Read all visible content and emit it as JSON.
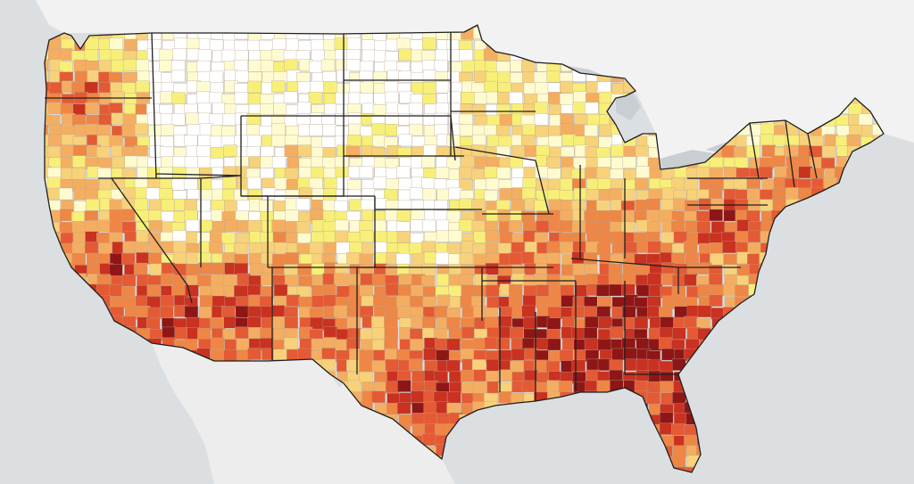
{
  "map": {
    "basemap_colors": {
      "water": "#dcdfe2",
      "land": "#eeeeee",
      "canada_land": "#f2f2f2",
      "mexico_land": "#ededed",
      "lakes": "#c9ced3"
    },
    "choropleth_scale": [
      "#ffffff",
      "#fffbd1",
      "#f8ef79",
      "#f7d27a",
      "#f4ae62",
      "#ee8646",
      "#e45a34",
      "#c93121",
      "#8f1616"
    ],
    "state_border_color": "#1f1f1f",
    "county_border_color": "#b8a48e"
  }
}
